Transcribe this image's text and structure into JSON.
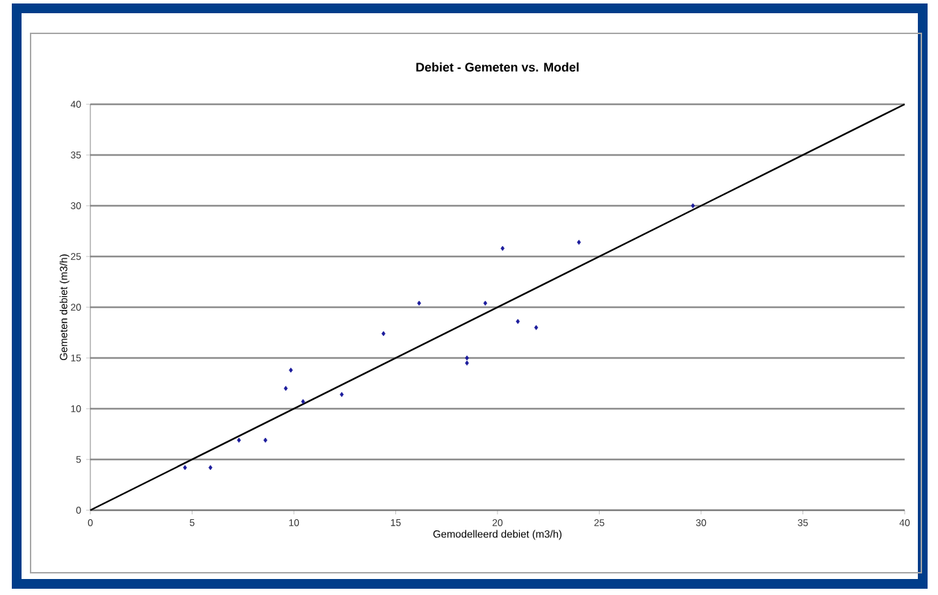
{
  "chart_data": {
    "type": "scatter",
    "title": "Debiet - Gemeten vs. Model",
    "xlabel": "Gemodelleerd debiet (m3/h)",
    "ylabel": "Gemeten debiet (m3/h)",
    "xlim": [
      0,
      40
    ],
    "ylim": [
      0,
      40
    ],
    "xticks": [
      0,
      5,
      10,
      15,
      20,
      25,
      30,
      35,
      40
    ],
    "yticks": [
      0,
      5,
      10,
      15,
      20,
      25,
      30,
      35,
      40
    ],
    "grid": "y",
    "marker": "diamond",
    "series": [
      {
        "color": "#1c1c9c",
        "x": [
          4.65,
          5.9,
          7.3,
          8.6,
          9.6,
          9.85,
          10.45,
          12.35,
          14.4,
          16.15,
          18.5,
          18.5,
          19.4,
          20.25,
          21.0,
          21.9,
          24.0,
          29.6
        ],
        "values": [
          4.2,
          4.2,
          6.9,
          6.9,
          12.0,
          13.8,
          10.7,
          11.4,
          17.4,
          20.4,
          15.0,
          14.5,
          20.4,
          25.8,
          18.6,
          18.0,
          26.4,
          30.0
        ]
      },
      {
        "type": "line",
        "color": "#000000",
        "x": [
          0,
          40
        ],
        "values": [
          0,
          40
        ],
        "marker": "none",
        "line_style": "solid"
      }
    ]
  }
}
